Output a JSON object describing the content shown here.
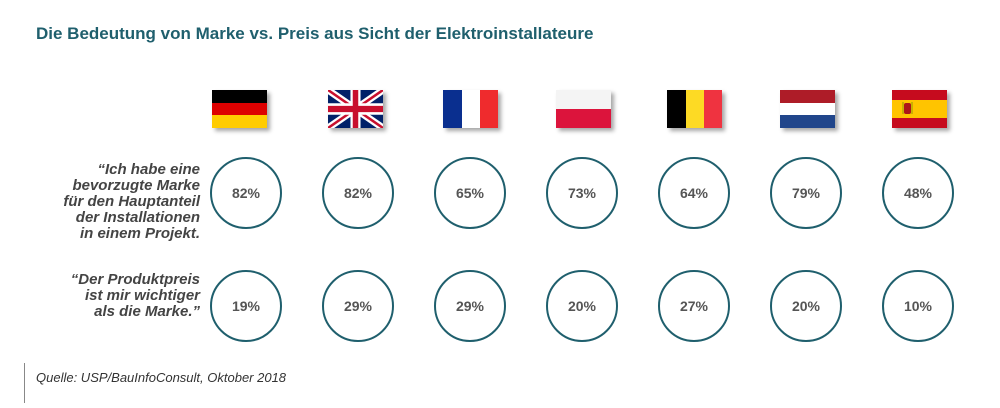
{
  "chart_data": {
    "type": "table",
    "title": "Die Bedeutung von Marke vs. Preis aus Sicht der Elektroinstallateure",
    "categories": [
      "Deutschland",
      "Vereinigtes Königreich",
      "Frankreich",
      "Polen",
      "Belgien",
      "Niederlande",
      "Spanien"
    ],
    "series": [
      {
        "name": "„Ich habe eine bevorzugte Marke für den Hauptanteil der Installationen in einem Projekt.",
        "values": [
          82,
          82,
          65,
          73,
          64,
          79,
          48
        ],
        "labels": [
          "82%",
          "82%",
          "65%",
          "73%",
          "64%",
          "79%",
          "48%"
        ]
      },
      {
        "name": "“Der Produktpreis ist mir wichtiger als die Marke.”",
        "values": [
          19,
          29,
          29,
          20,
          27,
          20,
          10
        ],
        "labels": [
          "19%",
          "29%",
          "29%",
          "20%",
          "27%",
          "20%",
          "10%"
        ]
      }
    ],
    "unit": "%"
  },
  "statements": [
    "“Ich habe eine\nbevorzugte Marke\nfür den Hauptanteil\nder Installationen\nin einem Projekt.",
    "“Der Produktpreis\nist mir wichtiger\nals die Marke.”"
  ],
  "source": "Quelle: USP/BauInfoConsult, Oktober 2018",
  "flags": [
    "germany-flag-icon",
    "uk-flag-icon",
    "france-flag-icon",
    "poland-flag-icon",
    "belgium-flag-icon",
    "netherlands-flag-icon",
    "spain-flag-icon"
  ],
  "colors": {
    "title": "#1f5f6d",
    "circle_border": "#1f5f6d",
    "value_text": "#555555",
    "statement_text": "#444444"
  }
}
